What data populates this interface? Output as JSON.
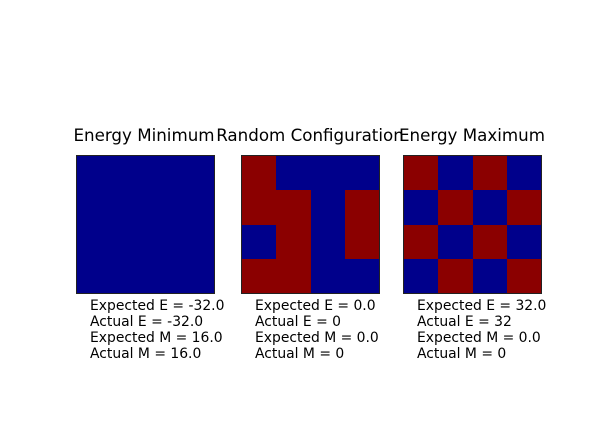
{
  "colors": {
    "spin_up_blue": "#00008b",
    "spin_down_red": "#8b0000",
    "background": "#ffffff",
    "border": "#222222",
    "text": "#000000"
  },
  "chart_data": [
    {
      "type": "heatmap",
      "title": "Energy Minimum",
      "grid_rows": 4,
      "grid_cols": 4,
      "legend": {
        "1": "spin up (dark blue)",
        "-1": "spin down (dark red)"
      },
      "grid": [
        [
          1,
          1,
          1,
          1
        ],
        [
          1,
          1,
          1,
          1
        ],
        [
          1,
          1,
          1,
          1
        ],
        [
          1,
          1,
          1,
          1
        ]
      ],
      "annotations": [
        "Expected E = -32.0",
        "Actual E = -32.0",
        "Expected M = 16.0",
        "Actual M = 16.0"
      ]
    },
    {
      "type": "heatmap",
      "title": "Random Configuration",
      "grid_rows": 4,
      "grid_cols": 4,
      "legend": {
        "1": "spin up (dark blue)",
        "-1": "spin down (dark red)"
      },
      "grid": [
        [
          -1,
          1,
          1,
          1
        ],
        [
          -1,
          -1,
          1,
          -1
        ],
        [
          1,
          -1,
          1,
          -1
        ],
        [
          -1,
          -1,
          1,
          1
        ]
      ],
      "annotations": [
        "Expected E = 0.0",
        "Actual E = 0",
        "Expected M = 0.0",
        "Actual M = 0"
      ]
    },
    {
      "type": "heatmap",
      "title": "Energy Maximum",
      "grid_rows": 4,
      "grid_cols": 4,
      "legend": {
        "1": "spin up (dark blue)",
        "-1": "spin down (dark red)"
      },
      "grid": [
        [
          -1,
          1,
          -1,
          1
        ],
        [
          1,
          -1,
          1,
          -1
        ],
        [
          -1,
          1,
          -1,
          1
        ],
        [
          1,
          -1,
          1,
          -1
        ]
      ],
      "annotations": [
        "Expected E = 32.0",
        "Actual E = 32",
        "Expected M = 0.0",
        "Actual M = 0"
      ]
    }
  ]
}
